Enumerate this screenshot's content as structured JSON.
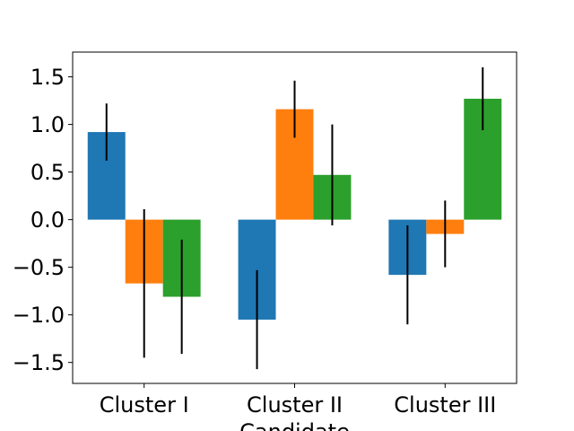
{
  "chart_data": {
    "type": "bar",
    "title": "",
    "xlabel": "Candidate",
    "ylabel": "",
    "categories": [
      "Cluster I",
      "Cluster II",
      "Cluster III"
    ],
    "series": [
      {
        "color": "#1f77b4",
        "values": [
          0.92,
          -1.05,
          -0.58
        ],
        "errors": [
          0.3,
          0.52,
          0.52
        ]
      },
      {
        "color": "#ff7f0e",
        "values": [
          -0.67,
          1.16,
          -0.15
        ],
        "errors": [
          0.78,
          0.3,
          0.35
        ]
      },
      {
        "color": "#2ca02c",
        "values": [
          -0.81,
          0.47,
          1.27
        ],
        "errors": [
          0.6,
          0.53,
          0.33
        ]
      }
    ],
    "ylim": [
      -1.72,
      1.76
    ],
    "yticks": [
      -1.5,
      -1.0,
      -0.5,
      0.0,
      0.5,
      1.0,
      1.5
    ],
    "ytick_labels": [
      "−1.5",
      "−1.0",
      "−0.5",
      "0.0",
      "0.5",
      "1.0",
      "1.5"
    ],
    "error_color": "#000000",
    "grid": false,
    "legend": "none"
  }
}
